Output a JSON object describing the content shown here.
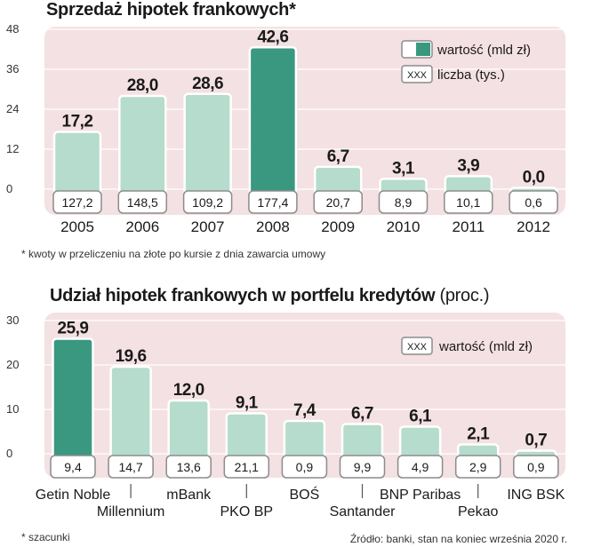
{
  "chart_data": [
    {
      "type": "bar",
      "title": "Sprzedaż hipotek frankowych*",
      "categories": [
        "2005",
        "2006",
        "2007",
        "2008",
        "2009",
        "2010",
        "2011",
        "2012"
      ],
      "values": [
        17.2,
        28.0,
        28.6,
        42.6,
        6.7,
        3.1,
        3.9,
        0.0
      ],
      "value_labels": [
        "17,2",
        "28,0",
        "28,6",
        "42,6",
        "6,7",
        "3,1",
        "3,9",
        "0,0"
      ],
      "count_labels": [
        "127,2",
        "148,5",
        "109,2",
        "177,4",
        "20,7",
        "8,9",
        "10,1",
        "0,6"
      ],
      "highlight_index": 3,
      "yticks": [
        "48",
        "36",
        "24",
        "12",
        "0"
      ],
      "ylim": [
        0,
        48
      ],
      "legend": {
        "value_label": "wartość (mld zł)",
        "count_label": "liczba (tys.)",
        "swatch_text": "XXX",
        "placement": "top-right"
      },
      "footnote": "* kwoty w przeliczeniu na złote po kursie z dnia zawarcia umowy"
    },
    {
      "type": "bar",
      "title": "Udział hipotek frankowych w portfelu kredytów",
      "title_unit": "(proc.)",
      "categories": [
        "Getin Noble",
        "Millennium",
        "mBank",
        "PKO BP",
        "BOŚ",
        "Santander",
        "BNP Paribas",
        "Pekao",
        "ING BSK"
      ],
      "values": [
        25.9,
        19.6,
        12.0,
        9.1,
        7.4,
        6.7,
        6.1,
        2.1,
        0.7
      ],
      "value_labels": [
        "25,9",
        "19,6",
        "12,0",
        "9,1",
        "7,4",
        "6,7",
        "6,1",
        "2,1",
        "0,7"
      ],
      "count_labels": [
        "9,4",
        "14,7",
        "13,6",
        "21,1",
        "0,9",
        "9,9",
        "4,9",
        "2,9",
        "0,9"
      ],
      "highlight_index": 0,
      "yticks": [
        "30",
        "20",
        "10",
        "0"
      ],
      "ylim": [
        0,
        30
      ],
      "legend": {
        "value_label": "wartość (mld zł)",
        "swatch_text": "XXX",
        "placement": "top-right"
      },
      "footnote": "* szacunki",
      "source": "Źródło: banki, stan na koniec września 2020 r."
    }
  ],
  "colors": {
    "bar": "#b5dccd",
    "bar_highlight": "#3a9880",
    "panel": "#f4e1e3",
    "label_box_border": "#8c8c8c",
    "text": "#1a1a1a"
  }
}
